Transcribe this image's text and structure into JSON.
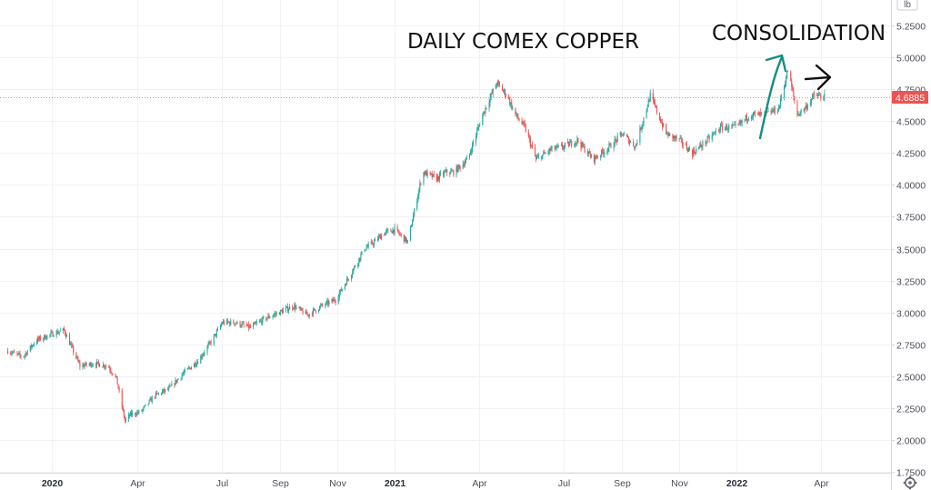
{
  "chart_data": {
    "type": "candlestick",
    "title": "",
    "annotations": [
      "DAILY COMEX COPPER",
      "CONSOLIDATION"
    ],
    "unit": "lb",
    "last_price": "4.6885",
    "y_ticks": [
      "5.2500",
      "5.0000",
      "4.7500",
      "4.5000",
      "4.2500",
      "4.0000",
      "3.7500",
      "3.5000",
      "3.2500",
      "3.0000",
      "2.7500",
      "2.5000",
      "2.2500",
      "2.0000",
      "1.7500"
    ],
    "ylim": [
      1.75,
      5.3
    ],
    "x_ticks": [
      {
        "label": "2020",
        "date": "2020-01-01",
        "bold": true
      },
      {
        "label": "Apr",
        "date": "2020-04-01",
        "bold": false
      },
      {
        "label": "Jul",
        "date": "2020-07-01",
        "bold": false
      },
      {
        "label": "Sep",
        "date": "2020-09-01",
        "bold": false
      },
      {
        "label": "Nov",
        "date": "2020-11-01",
        "bold": false
      },
      {
        "label": "2021",
        "date": "2021-01-01",
        "bold": true
      },
      {
        "label": "Apr",
        "date": "2021-04-01",
        "bold": false
      },
      {
        "label": "Jul",
        "date": "2021-07-01",
        "bold": false
      },
      {
        "label": "Sep",
        "date": "2021-09-01",
        "bold": false
      },
      {
        "label": "Nov",
        "date": "2021-11-01",
        "bold": false
      },
      {
        "label": "2022",
        "date": "2022-01-01",
        "bold": true
      },
      {
        "label": "Apr",
        "date": "2022-04-01",
        "bold": false
      }
    ],
    "series": [
      {
        "x": [
          "2019-11-15",
          "2019-12-01",
          "2019-12-15",
          "2020-01-01",
          "2020-01-14",
          "2020-01-31",
          "2020-02-15",
          "2020-03-01",
          "2020-03-10",
          "2020-03-19",
          "2020-03-25",
          "2020-04-05",
          "2020-04-20",
          "2020-05-05",
          "2020-05-20",
          "2020-06-05",
          "2020-06-20",
          "2020-07-01",
          "2020-07-15",
          "2020-07-31",
          "2020-08-15",
          "2020-08-31",
          "2020-09-15",
          "2020-09-30",
          "2020-10-15",
          "2020-10-30",
          "2020-11-15",
          "2020-11-30",
          "2020-12-10",
          "2020-12-20",
          "2021-01-01",
          "2021-01-15",
          "2021-01-31",
          "2021-02-15",
          "2021-02-25",
          "2021-03-05",
          "2021-03-20",
          "2021-04-05",
          "2021-04-20",
          "2021-05-01",
          "2021-05-10",
          "2021-05-20",
          "2021-06-01",
          "2021-06-18",
          "2021-07-01",
          "2021-07-15",
          "2021-08-01",
          "2021-08-19",
          "2021-09-01",
          "2021-09-15",
          "2021-10-01",
          "2021-10-18",
          "2021-11-01",
          "2021-11-15",
          "2021-12-01",
          "2021-12-15",
          "2022-01-01",
          "2022-01-15",
          "2022-02-01",
          "2022-02-15",
          "2022-02-25",
          "2022-03-07",
          "2022-03-15",
          "2022-03-25",
          "2022-04-05"
        ],
        "values": [
          2.7,
          2.65,
          2.78,
          2.83,
          2.86,
          2.58,
          2.6,
          2.58,
          2.48,
          2.15,
          2.2,
          2.22,
          2.35,
          2.4,
          2.52,
          2.62,
          2.78,
          2.92,
          2.92,
          2.88,
          2.95,
          3.0,
          3.05,
          2.98,
          3.05,
          3.1,
          3.3,
          3.5,
          3.55,
          3.62,
          3.65,
          3.55,
          4.1,
          4.05,
          4.1,
          4.1,
          4.2,
          4.55,
          4.8,
          4.7,
          4.55,
          4.45,
          4.2,
          4.28,
          4.3,
          4.35,
          4.2,
          4.3,
          4.4,
          4.3,
          4.7,
          4.4,
          4.35,
          4.25,
          4.35,
          4.45,
          4.45,
          4.55,
          4.55,
          4.6,
          4.9,
          4.55,
          4.6,
          4.7,
          4.69
        ]
      }
    ],
    "grid": true,
    "legend": "none"
  },
  "ui": {
    "settings_icon": "gear-icon"
  }
}
